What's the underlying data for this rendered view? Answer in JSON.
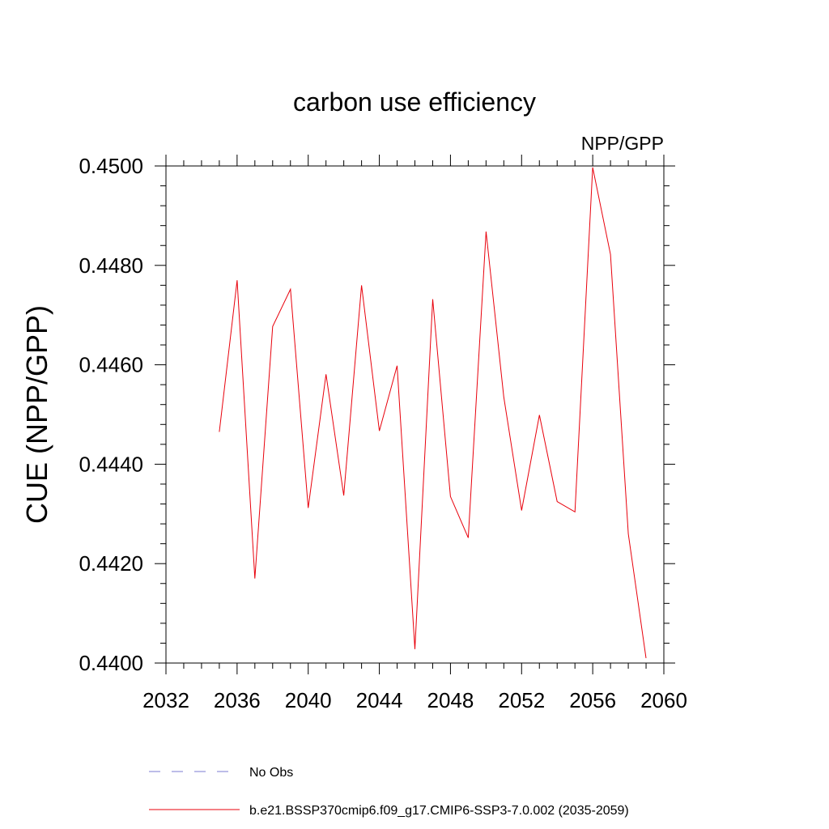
{
  "chart_data": {
    "type": "line",
    "title": "carbon use efficiency",
    "subtitle": "NPP/GPP",
    "xlabel": "",
    "ylabel": "CUE  (NPP/GPP)",
    "xlim": [
      2032,
      2060
    ],
    "ylim": [
      0.44,
      0.45
    ],
    "x_ticks": [
      2032,
      2036,
      2040,
      2044,
      2048,
      2052,
      2056,
      2060
    ],
    "x_tick_labels": [
      "2032",
      "2036",
      "2040",
      "2044",
      "2048",
      "2052",
      "2056",
      "2060"
    ],
    "y_ticks": [
      0.44,
      0.442,
      0.444,
      0.446,
      0.448,
      0.45
    ],
    "y_tick_labels": [
      "0.4400",
      "0.4420",
      "0.4440",
      "0.4460",
      "0.4480",
      "0.4500"
    ],
    "grid": false,
    "series": [
      {
        "name": "b.e21.BSSP370cmip6.f09_g17.CMIP6-SSP3-7.0.002 (2035-2059)",
        "color": "#e8000b",
        "x": [
          2035,
          2036,
          2037,
          2038,
          2039,
          2040,
          2041,
          2042,
          2043,
          2044,
          2045,
          2046,
          2047,
          2048,
          2049,
          2050,
          2051,
          2052,
          2053,
          2054,
          2055,
          2056,
          2057,
          2058,
          2059
        ],
        "values": [
          0.44465,
          0.4477,
          0.4417,
          0.44677,
          0.44752,
          0.44312,
          0.44581,
          0.44337,
          0.4476,
          0.44467,
          0.44598,
          0.44028,
          0.44732,
          0.44335,
          0.44252,
          0.44868,
          0.44535,
          0.44307,
          0.44499,
          0.44325,
          0.44304,
          0.44997,
          0.44822,
          0.4426,
          0.4401
        ]
      }
    ],
    "legend": {
      "placement": "bottom",
      "entries": [
        {
          "label": "No Obs",
          "style": "dashed",
          "color": "#7b7bd0"
        },
        {
          "label": "b.e21.BSSP370cmip6.f09_g17.CMIP6-SSP3-7.0.002 (2035-2059)",
          "style": "solid",
          "color": "#e8000b"
        }
      ]
    }
  }
}
